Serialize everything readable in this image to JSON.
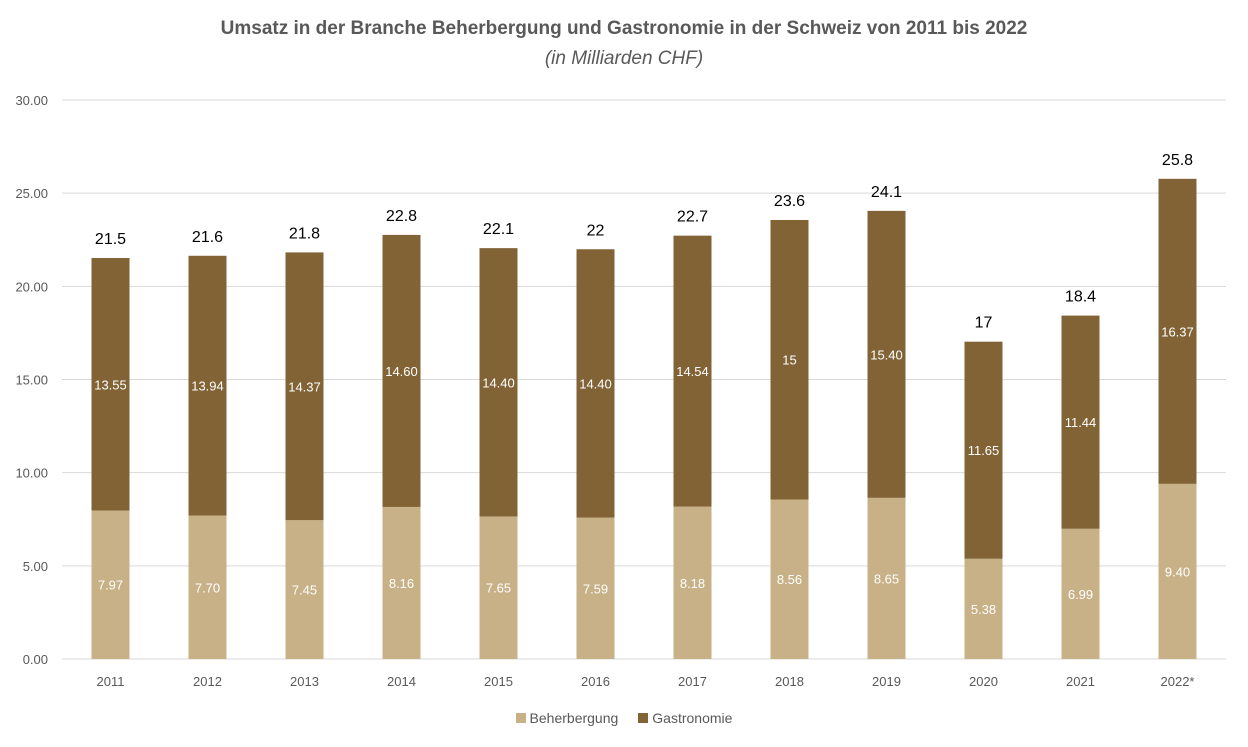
{
  "chart_data": {
    "type": "bar",
    "stacked": true,
    "title": "Umsatz in der Branche Beherbergung und Gastronomie in der Schweiz von 2011 bis 2022",
    "subtitle": "(in Milliarden CHF)",
    "xlabel": "",
    "ylabel": "",
    "ylim": [
      0,
      30
    ],
    "yticks": [
      "0.00",
      "5.00",
      "10.00",
      "15.00",
      "20.00",
      "25.00",
      "30.00"
    ],
    "grid": true,
    "legend_position": "bottom",
    "categories": [
      "2011",
      "2012",
      "2013",
      "2014",
      "2015",
      "2016",
      "2017",
      "2018",
      "2019",
      "2020",
      "2021",
      "2022*"
    ],
    "series": [
      {
        "name": "Beherbergung",
        "color": "#c8b187",
        "values": [
          7.97,
          7.7,
          7.45,
          8.16,
          7.65,
          7.59,
          8.18,
          8.56,
          8.65,
          5.38,
          6.99,
          9.4
        ],
        "labels": [
          "7.97",
          "7.70",
          "7.45",
          "8.16",
          "7.65",
          "7.59",
          "8.18",
          "8.56",
          "8.65",
          "5.38",
          "6.99",
          "9.40"
        ]
      },
      {
        "name": "Gastronomie",
        "color": "#826336",
        "values": [
          13.55,
          13.94,
          14.37,
          14.6,
          14.4,
          14.4,
          14.54,
          15,
          15.4,
          11.65,
          11.44,
          16.37
        ],
        "labels": [
          "13.55",
          "13.94",
          "14.37",
          "14.60",
          "14.40",
          "14.40",
          "14.54",
          "15",
          "15.40",
          "11.65",
          "11.44",
          "16.37"
        ]
      }
    ],
    "totals": [
      "21.5",
      "21.6",
      "21.8",
      "22.8",
      "22.1",
      "22",
      "22.7",
      "23.6",
      "24.1",
      "17",
      "18.4",
      "25.8"
    ]
  }
}
